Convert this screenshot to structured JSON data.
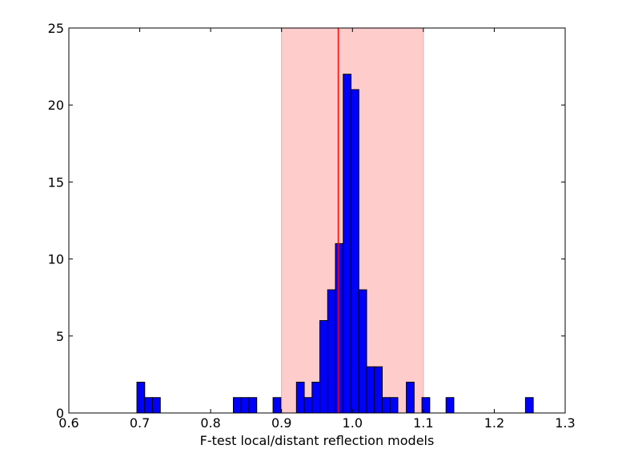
{
  "chart_data": {
    "type": "bar",
    "xlabel": "F-test local/distant reflection models",
    "ylabel": "",
    "title": "",
    "xlim": [
      0.6,
      1.3
    ],
    "ylim": [
      0,
      25
    ],
    "x_ticks": [
      0.6,
      0.7,
      0.8,
      0.9,
      1.0,
      1.1,
      1.2,
      1.3
    ],
    "x_tick_labels": [
      "0.6",
      "0.7",
      "0.8",
      "0.9",
      "1.0",
      "1.1",
      "1.2",
      "1.3"
    ],
    "y_ticks": [
      0,
      5,
      10,
      15,
      20,
      25
    ],
    "y_tick_labels": [
      "0",
      "5",
      "10",
      "15",
      "20",
      "25"
    ],
    "bin_width": 0.011,
    "bins": [
      {
        "x0": 0.696,
        "count": 2
      },
      {
        "x0": 0.707,
        "count": 1
      },
      {
        "x0": 0.718,
        "count": 1
      },
      {
        "x0": 0.832,
        "count": 1
      },
      {
        "x0": 0.843,
        "count": 1
      },
      {
        "x0": 0.854,
        "count": 1
      },
      {
        "x0": 0.888,
        "count": 1
      },
      {
        "x0": 0.921,
        "count": 2
      },
      {
        "x0": 0.932,
        "count": 1
      },
      {
        "x0": 0.943,
        "count": 2
      },
      {
        "x0": 0.954,
        "count": 6
      },
      {
        "x0": 0.965,
        "count": 8
      },
      {
        "x0": 0.976,
        "count": 11
      },
      {
        "x0": 0.987,
        "count": 22
      },
      {
        "x0": 0.998,
        "count": 21
      },
      {
        "x0": 1.009,
        "count": 8
      },
      {
        "x0": 1.02,
        "count": 3
      },
      {
        "x0": 1.031,
        "count": 3
      },
      {
        "x0": 1.042,
        "count": 1
      },
      {
        "x0": 1.053,
        "count": 1
      },
      {
        "x0": 1.076,
        "count": 2
      },
      {
        "x0": 1.098,
        "count": 1
      },
      {
        "x0": 1.132,
        "count": 1
      },
      {
        "x0": 1.244,
        "count": 1
      }
    ],
    "shaded_region": {
      "x0": 0.9,
      "x1": 1.1,
      "color": "#ffcccc"
    },
    "vertical_line": {
      "x": 0.98,
      "color": "#ff0000"
    },
    "bar_color": "#0000ff",
    "bar_edge_color": "#000000",
    "grid": false
  }
}
